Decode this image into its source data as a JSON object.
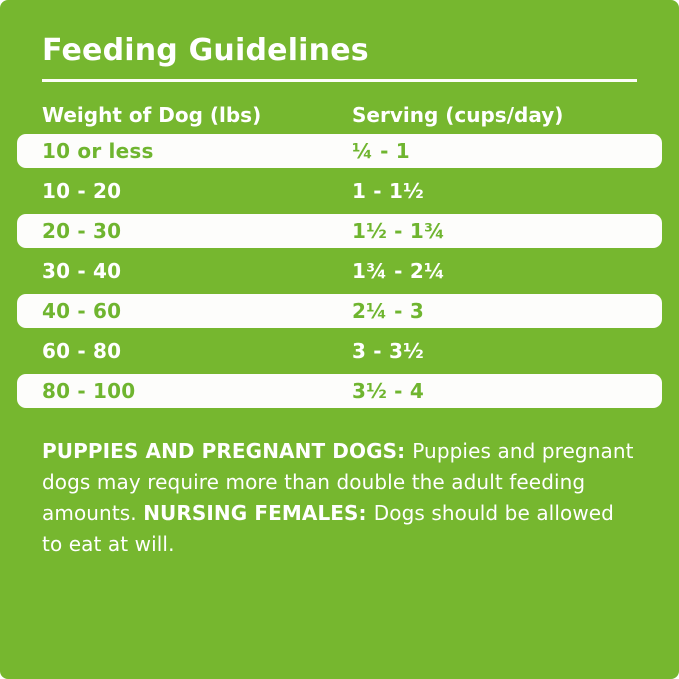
{
  "page": {
    "title": "Feeding Guidelines"
  },
  "colors": {
    "background_green": "#76B72F",
    "row_white": "#FDFDFB",
    "row_text_green": "#6FB52F",
    "text_white": "#FFFFFF"
  },
  "table": {
    "columns": [
      "Weight of Dog (lbs)",
      "Serving (cups/day)"
    ],
    "rows": [
      {
        "weight": "10 or less",
        "serving": "¼ - 1"
      },
      {
        "weight": "10 - 20",
        "serving": "1 - 1½"
      },
      {
        "weight": "20 - 30",
        "serving": "1½ - 1¾"
      },
      {
        "weight": "30 - 40",
        "serving": "1¾ - 2¼"
      },
      {
        "weight": "40 - 60",
        "serving": "2¼ - 3"
      },
      {
        "weight": "60 - 80",
        "serving": "3 - 3½"
      },
      {
        "weight": "80 - 100",
        "serving": "3½ - 4"
      }
    ]
  },
  "footer": {
    "segments": [
      {
        "text": "PUPPIES AND PREGNANT DOGS: ",
        "bold": true
      },
      {
        "text": "Puppies and pregnant dogs may require more than double the adult feeding amounts. ",
        "bold": false
      },
      {
        "text": "NURSING FEMALES: ",
        "bold": true
      },
      {
        "text": "Dogs should be allowed to eat at will.",
        "bold": false
      }
    ]
  }
}
